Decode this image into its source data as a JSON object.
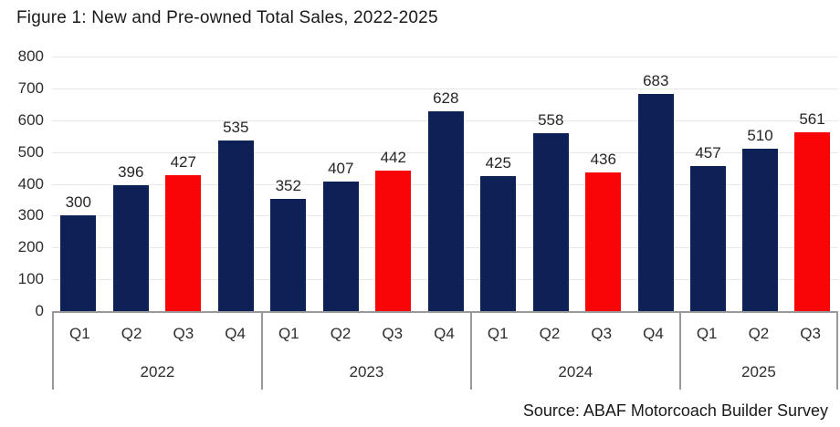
{
  "title": "Figure 1: New and Pre-owned Total Sales, 2022-2025",
  "source": "Source: ABAF Motorcoach Builder Survey",
  "colors": {
    "bar_default": "#0d2156",
    "bar_highlight": "#fa0505",
    "gridline": "#e8e8e8",
    "axis_line": "#999999",
    "label_text": "#2e2e2e"
  },
  "chart_data": {
    "type": "bar",
    "title": "Figure 1: New and Pre-owned Total Sales, 2022-2025",
    "ylabel": "",
    "xlabel": "",
    "ylim": [
      0,
      800
    ],
    "y_tick_step": 100,
    "y_ticks": [
      800,
      700,
      600,
      500,
      400,
      300,
      200,
      100,
      0
    ],
    "grid": true,
    "highlighted_quarter": "Q3",
    "groups": [
      {
        "year": "2022",
        "quarters": [
          "Q1",
          "Q2",
          "Q3",
          "Q4"
        ],
        "values": [
          300,
          396,
          427,
          535
        ],
        "highlight": [
          false,
          false,
          true,
          false
        ]
      },
      {
        "year": "2023",
        "quarters": [
          "Q1",
          "Q2",
          "Q3",
          "Q4"
        ],
        "values": [
          352,
          407,
          442,
          628
        ],
        "highlight": [
          false,
          false,
          true,
          false
        ]
      },
      {
        "year": "2024",
        "quarters": [
          "Q1",
          "Q2",
          "Q3",
          "Q4"
        ],
        "values": [
          425,
          558,
          436,
          683
        ],
        "highlight": [
          false,
          false,
          true,
          false
        ]
      },
      {
        "year": "2025",
        "quarters": [
          "Q1",
          "Q2",
          "Q3"
        ],
        "values": [
          457,
          510,
          561
        ],
        "highlight": [
          false,
          false,
          true
        ]
      }
    ]
  }
}
